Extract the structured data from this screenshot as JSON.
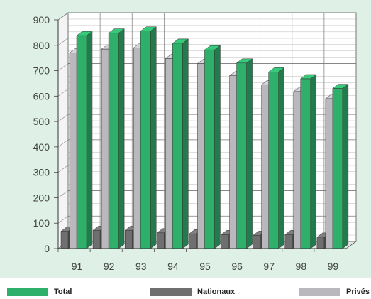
{
  "chart_data": {
    "type": "bar",
    "title": "",
    "xlabel": "",
    "ylabel": "",
    "categories": [
      "91",
      "92",
      "93",
      "94",
      "95",
      "96",
      "97",
      "98",
      "99"
    ],
    "series": [
      {
        "name": "Total",
        "values": [
          838,
          848,
          856,
          808,
          782,
          730,
          695,
          668,
          630
        ],
        "color": "#2fb06a"
      },
      {
        "name": "Nationaux",
        "values": [
          68,
          72,
          72,
          62,
          58,
          55,
          52,
          55,
          45
        ],
        "color": "#6f6f6f"
      },
      {
        "name": "Privés",
        "values": [
          770,
          785,
          790,
          748,
          728,
          680,
          645,
          618,
          590
        ],
        "color": "#b9b9bd"
      }
    ],
    "ylim": [
      0,
      900
    ],
    "yticks": [
      "0",
      "100",
      "200",
      "300",
      "400",
      "500",
      "600",
      "700",
      "800",
      "900"
    ],
    "grid": true,
    "legend_position": "bottom"
  },
  "legend": [
    {
      "label": "Total",
      "color": "#2fb06a"
    },
    {
      "label": "Nationaux",
      "color": "#6f6f6f"
    },
    {
      "label": "Privés",
      "color": "#b9b9bd"
    }
  ]
}
